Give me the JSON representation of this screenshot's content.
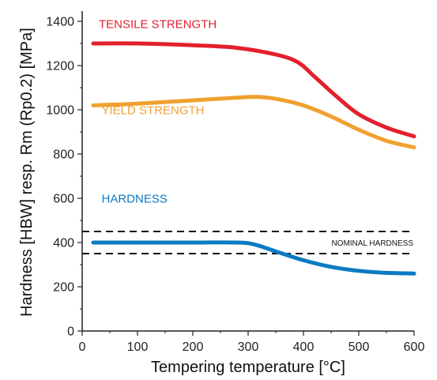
{
  "chart_data": {
    "type": "line",
    "xlabel": "Tempering temperature [°C]",
    "ylabel": "Hardness [HBW] resp. Rm (Rp0.2) [MPa]",
    "xlim": [
      0,
      600
    ],
    "ylim": [
      0,
      1400
    ],
    "x_ticks": [
      0,
      100,
      200,
      300,
      400,
      500,
      600
    ],
    "y_ticks": [
      0,
      200,
      400,
      600,
      800,
      1000,
      1200,
      1400
    ],
    "grid": false,
    "series": [
      {
        "name": "TENSILE STRENGTH",
        "color": "#e3202d",
        "x": [
          20,
          100,
          200,
          280,
          350,
          390,
          420,
          460,
          500,
          550,
          600
        ],
        "y": [
          1300,
          1300,
          1292,
          1280,
          1250,
          1215,
          1150,
          1060,
          980,
          920,
          880
        ]
      },
      {
        "name": "YIELD STRENGTH",
        "color": "#f0a030",
        "x": [
          20,
          100,
          200,
          280,
          320,
          360,
          400,
          450,
          500,
          550,
          600
        ],
        "y": [
          1020,
          1028,
          1043,
          1055,
          1058,
          1045,
          1020,
          970,
          910,
          860,
          830
        ]
      },
      {
        "name": "HARDNESS",
        "color": "#0b7bc2",
        "x": [
          20,
          100,
          200,
          280,
          310,
          350,
          400,
          450,
          500,
          550,
          600
        ],
        "y": [
          400,
          400,
          400,
          400,
          392,
          360,
          320,
          290,
          272,
          263,
          260
        ]
      }
    ],
    "reference_lines": [
      {
        "y": 450,
        "style": "dashed",
        "color": "#111111"
      },
      {
        "y": 350,
        "style": "dashed",
        "color": "#111111"
      }
    ],
    "annotations": [
      {
        "text": "NOMINAL HARDNESS",
        "x": 600,
        "y": 400
      }
    ]
  }
}
